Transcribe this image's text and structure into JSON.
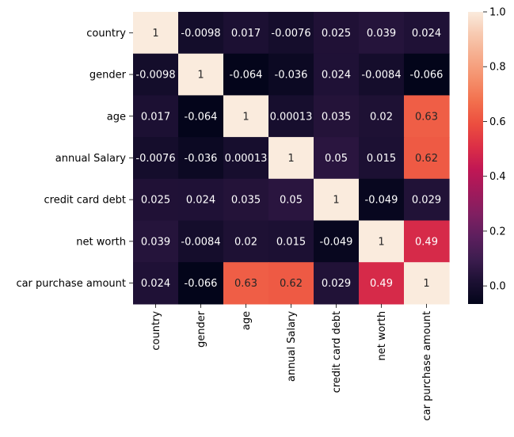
{
  "chart_data": {
    "type": "heatmap",
    "title": "",
    "xlabel": "",
    "ylabel": "",
    "x_labels": [
      "country",
      "gender",
      "age",
      "annual Salary",
      "credit card debt",
      "net worth",
      "car purchase amount"
    ],
    "y_labels": [
      "country",
      "gender",
      "age",
      "annual Salary",
      "credit card debt",
      "net worth",
      "car purchase amount"
    ],
    "values": [
      [
        1,
        -0.0098,
        0.017,
        -0.0076,
        0.025,
        0.039,
        0.024
      ],
      [
        -0.0098,
        1,
        -0.064,
        -0.036,
        0.024,
        -0.0084,
        -0.066
      ],
      [
        0.017,
        -0.064,
        1,
        0.00013,
        0.035,
        0.02,
        0.63
      ],
      [
        -0.0076,
        -0.036,
        0.00013,
        1,
        0.05,
        0.015,
        0.62
      ],
      [
        0.025,
        0.024,
        0.035,
        0.05,
        1,
        -0.049,
        0.029
      ],
      [
        0.039,
        -0.0084,
        0.02,
        0.015,
        -0.049,
        1,
        0.49
      ],
      [
        0.024,
        -0.066,
        0.63,
        0.62,
        0.029,
        0.49,
        1
      ]
    ],
    "annotations": [
      [
        "1",
        "-0.0098",
        "0.017",
        "-0.0076",
        "0.025",
        "0.039",
        "0.024"
      ],
      [
        "-0.0098",
        "1",
        "-0.064",
        "-0.036",
        "0.024",
        "-0.0084",
        "-0.066"
      ],
      [
        "0.017",
        "-0.064",
        "1",
        "0.00013",
        "0.035",
        "0.02",
        "0.63"
      ],
      [
        "-0.0076",
        "-0.036",
        "0.00013",
        "1",
        "0.05",
        "0.015",
        "0.62"
      ],
      [
        "0.025",
        "0.024",
        "0.035",
        "0.05",
        "1",
        "-0.049",
        "0.029"
      ],
      [
        "0.039",
        "-0.0084",
        "0.02",
        "0.015",
        "-0.049",
        "1",
        "0.49"
      ],
      [
        "0.024",
        "-0.066",
        "0.63",
        "0.62",
        "0.029",
        "0.49",
        "1"
      ]
    ],
    "colorbar": {
      "range": [
        -0.066,
        1.0
      ],
      "ticks": [
        0.0,
        0.2,
        0.4,
        0.6,
        0.8,
        1.0
      ],
      "tick_labels": [
        "0.0",
        "0.2",
        "0.4",
        "0.6",
        "0.8",
        "1.0"
      ],
      "colormap": "rocket",
      "color_stops": [
        "#03051a",
        "#1c1033",
        "#3d1d4f",
        "#5d1f5e",
        "#801f61",
        "#a11a5b",
        "#c11754",
        "#dc2f46",
        "#ec4e3f",
        "#f26f4d",
        "#f58f6b",
        "#f6ac8c",
        "#f7c9b0",
        "#faebdd"
      ]
    },
    "grid": false
  }
}
